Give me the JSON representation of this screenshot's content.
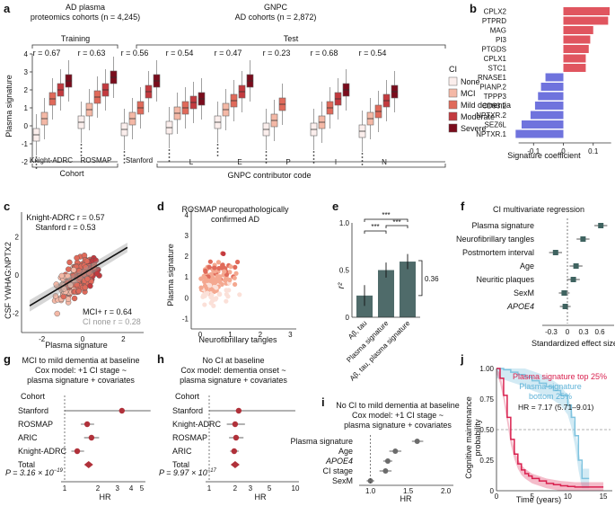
{
  "chart_data": [
    {
      "panel": "a",
      "type": "box",
      "groups": [
        {
          "title": "AD plasma",
          "subtitle": "proteomics cohorts (n = 4,245)"
        },
        {
          "title": "GNPC",
          "subtitle": "AD cohorts (n = 2,872)"
        }
      ],
      "training_label": "Training",
      "test_label": "Test",
      "ylabel": "Plasma signature",
      "ylim": [
        -2,
        4
      ],
      "yticks": [
        "-2",
        "-1",
        "0",
        "1",
        "2",
        "3",
        "4"
      ],
      "x_title_cohort": "Cohort",
      "x_title_gnpc": "GNPC contributor code",
      "legend_title": "CI",
      "legend": [
        "None",
        "MCI",
        "Mild dementia",
        "Moderate",
        "Severe"
      ],
      "colors": [
        "#fbeeec",
        "#f4b8a6",
        "#e06a5a",
        "#c33a3f",
        "#7a0c1c"
      ],
      "cohorts": [
        {
          "name": "Knight-ADRC",
          "r": "r = 0.67",
          "medians": [
            -0.5,
            0.4,
            1.5,
            2.0,
            2.5
          ]
        },
        {
          "name": "ROSMAP",
          "r": "r = 0.63",
          "medians": [
            0.2,
            0.9,
            1.6,
            2.0,
            2.7
          ]
        },
        {
          "name": "Stanford",
          "r": "r = 0.56",
          "medians": [
            -0.2,
            0.4,
            1.0,
            1.9,
            2.5
          ]
        },
        {
          "name": "L",
          "r": "r = 0.54",
          "medians": [
            -0.1,
            0.7,
            1.0,
            1.3,
            1.5
          ]
        },
        {
          "name": "E",
          "r": "r = 0.47",
          "medians": [
            0.2,
            0.9,
            1.4,
            1.9,
            2.5
          ]
        },
        {
          "name": "P",
          "r": "r = 0.23",
          "medians": [
            -0.2,
            0.3,
            1.2,
            null,
            null
          ]
        },
        {
          "name": "I",
          "r": "r = 0.68",
          "medians": [
            -0.2,
            0.2,
            1.0,
            1.5,
            2.0
          ]
        },
        {
          "name": "N",
          "r": "r = 0.54",
          "medians": [
            -0.3,
            0.4,
            0.8,
            1.4,
            1.9
          ]
        }
      ]
    },
    {
      "panel": "b",
      "type": "bar",
      "categories": [
        "CPLX2",
        "PTPRD",
        "MAG",
        "PI3",
        "PTGDS",
        "CPLX1",
        "STC1",
        "RNASE1",
        "PIANP.2",
        "TPPP3",
        "CD93.2",
        "NPTXR.2",
        "SEZ6L",
        "NPTXR.1"
      ],
      "values": [
        0.155,
        0.15,
        0.1,
        0.09,
        0.085,
        0.075,
        0.075,
        -0.06,
        -0.075,
        -0.085,
        -0.095,
        -0.11,
        -0.14,
        -0.16
      ],
      "xlabel": "Signature coefficient",
      "xticks": [
        "-0.1",
        "0",
        "0.1"
      ],
      "xlim": [
        -0.17,
        0.17
      ],
      "pos_color": "#e0555f",
      "neg_color": "#6f73dd"
    },
    {
      "panel": "c",
      "type": "scatter",
      "xlabel": "Plasma signature",
      "ylabel": "CSF YWHAG:NPTX2",
      "xticks": [
        "-2",
        "0",
        "2"
      ],
      "yticks": [
        "-2",
        "0",
        "2"
      ],
      "xlim": [
        -3,
        3
      ],
      "ylim": [
        -3,
        3.3
      ],
      "annot1": "Knight-ADRC r = 0.57",
      "annot2": "Stanford r = 0.53",
      "annot3": "MCI+ r = 0.64",
      "annot4": "CI none r = 0.28",
      "fit_line": {
        "x": [
          -2.6,
          2.2
        ],
        "y": [
          -1.6,
          1.45
        ]
      }
    },
    {
      "panel": "d",
      "type": "scatter",
      "title1": "ROSMAP neuropathologically",
      "title2": "confirmed AD",
      "xlabel": "Neurofibrillary tangles",
      "ylabel": "Plasma signature",
      "xticks": [
        "0",
        "1",
        "2",
        "3"
      ],
      "yticks": [
        "-1",
        "0",
        "1",
        "2",
        "3",
        "4"
      ],
      "xlim": [
        -0.3,
        3.2
      ],
      "ylim": [
        -1.5,
        4.3
      ]
    },
    {
      "panel": "e",
      "type": "bar",
      "categories": [
        "Aβ, tau",
        "Plasma signature",
        "Aβ, tau, plasma signature"
      ],
      "values": [
        0.23,
        0.5,
        0.59
      ],
      "errors": [
        0.11,
        0.08,
        0.08
      ],
      "ylabel": "r²",
      "yticks": [
        "0",
        "0.5",
        "1.0"
      ],
      "ylim": [
        0,
        1.0
      ],
      "sig": [
        "***",
        "***",
        "***"
      ],
      "bracket_label": "0.36",
      "bar_color": "#4f6b6a"
    },
    {
      "panel": "f",
      "type": "forest",
      "title": "CI multivariate regression",
      "rows": [
        "Plasma signature",
        "Neurofibrillary tangles",
        "Postmortem interval",
        "Age",
        "Neuritic plaques",
        "SexM",
        "APOE4"
      ],
      "estimates": [
        0.62,
        0.29,
        -0.22,
        0.16,
        0.11,
        -0.06,
        -0.04
      ],
      "ci_low": [
        0.5,
        0.17,
        -0.34,
        0.04,
        -0.01,
        -0.16,
        -0.14
      ],
      "ci_high": [
        0.74,
        0.41,
        -0.1,
        0.28,
        0.23,
        0.04,
        0.06
      ],
      "xlabel": "Standardized effect size",
      "xticks": [
        "-0.3",
        "0",
        "0.3",
        "0.6"
      ],
      "xlim": [
        -0.4,
        0.8
      ],
      "marker_color": "#3f6360"
    },
    {
      "panel": "g",
      "type": "forest",
      "title1": "MCI to mild dementia at baseline",
      "title2": "Cox model: +1 CI stage ~",
      "title3": "plasma signature + covariates",
      "col_header": "Cohort",
      "rows": [
        "Stanford",
        "ROSMAP",
        "ARIC",
        "Knight-ADRC",
        "Total"
      ],
      "hr": [
        3.3,
        1.6,
        1.75,
        1.3,
        1.65
      ],
      "ci_low": [
        1.0,
        1.4,
        1.5,
        1.15,
        1.55
      ],
      "ci_high": [
        6.0,
        1.85,
        2.05,
        1.5,
        1.75
      ],
      "xlabel": "HR",
      "xticks": [
        "1",
        "2",
        "3",
        "4",
        "5"
      ],
      "xlim": [
        0.8,
        6.5
      ],
      "p_label": "P = 3.16 × 10",
      "p_exp": "−19",
      "marker_color": "#b0313a"
    },
    {
      "panel": "h",
      "type": "forest",
      "title1": "No CI at baseline",
      "title2": "Cox model: dementia onset ~",
      "title3": "plasma signature + covariates",
      "col_header": "Cohort",
      "rows": [
        "Stanford",
        "Knight-ADRC",
        "ROSMAP",
        "ARIC",
        "Total"
      ],
      "hr": [
        2.2,
        2.0,
        2.05,
        1.95,
        2.0
      ],
      "ci_low": [
        1.0,
        1.6,
        1.7,
        1.75,
        1.85
      ],
      "ci_high": [
        10.0,
        2.6,
        2.5,
        2.2,
        2.15
      ],
      "xlabel": "HR",
      "xticks": [
        "1",
        "2",
        "3",
        "5",
        "10"
      ],
      "xlim": [
        0.5,
        14
      ],
      "p_label": "P = 9.97 × 10",
      "p_exp": "−17",
      "marker_color": "#b0313a"
    },
    {
      "panel": "i",
      "type": "forest",
      "title1": "No CI to mild dementia at baseline",
      "title2": "Cox model: +1 CI stage ~",
      "title3": "plasma signature + covariates",
      "rows": [
        "Plasma signature",
        "Age",
        "APOE4",
        "CI stage",
        "SexM"
      ],
      "hr": [
        1.62,
        1.33,
        1.23,
        1.2,
        1.0
      ],
      "ci_low": [
        1.55,
        1.25,
        1.17,
        1.12,
        0.95
      ],
      "ci_high": [
        1.7,
        1.41,
        1.29,
        1.28,
        1.05
      ],
      "xlabel": "HR",
      "xticks": [
        "1.0",
        "1.5",
        "2.0"
      ],
      "xlim": [
        0.85,
        2.1
      ],
      "marker_color": "#6b6b6b"
    },
    {
      "panel": "j",
      "type": "line",
      "legend1": "Plasma signature top 25%",
      "legend2": "Plasma signature",
      "legend3": "bottom 25%",
      "hr_label": "HR = 7.17 (5.71–9.01)",
      "xlabel": "Time (years)",
      "ylabel": "Cognitive maintenance probability",
      "xticks": [
        "0",
        "5",
        "10",
        "15"
      ],
      "yticks": [
        "0",
        "0.25",
        "0.50",
        "0.75",
        "1.00"
      ],
      "xlim": [
        0,
        16
      ],
      "ylim": [
        0,
        1
      ],
      "top_x": [
        0,
        0.5,
        1,
        1.5,
        2,
        2.5,
        3,
        3.5,
        4,
        4.5,
        5,
        6,
        7,
        8,
        9,
        10,
        11,
        12,
        13,
        14,
        15
      ],
      "top_y": [
        1.0,
        0.92,
        0.78,
        0.6,
        0.42,
        0.3,
        0.22,
        0.17,
        0.14,
        0.12,
        0.1,
        0.08,
        0.06,
        0.05,
        0.04,
        0.035,
        0.03,
        0.03,
        0.03,
        0.03,
        0.03
      ],
      "bottom_x": [
        0,
        1,
        2,
        3,
        4,
        5,
        6,
        7,
        8,
        9,
        10,
        10.5,
        11,
        11.5,
        12,
        13
      ],
      "bottom_y": [
        1.0,
        0.99,
        0.97,
        0.95,
        0.93,
        0.9,
        0.88,
        0.85,
        0.82,
        0.78,
        0.7,
        0.6,
        0.45,
        0.25,
        0.1,
        0.1
      ],
      "colors": {
        "top": "#d9214f",
        "bottom": "#7fc3df"
      },
      "dashed_y": 0.5
    }
  ],
  "panel_letters": [
    "a",
    "b",
    "c",
    "d",
    "e",
    "f",
    "g",
    "h",
    "i",
    "j"
  ]
}
